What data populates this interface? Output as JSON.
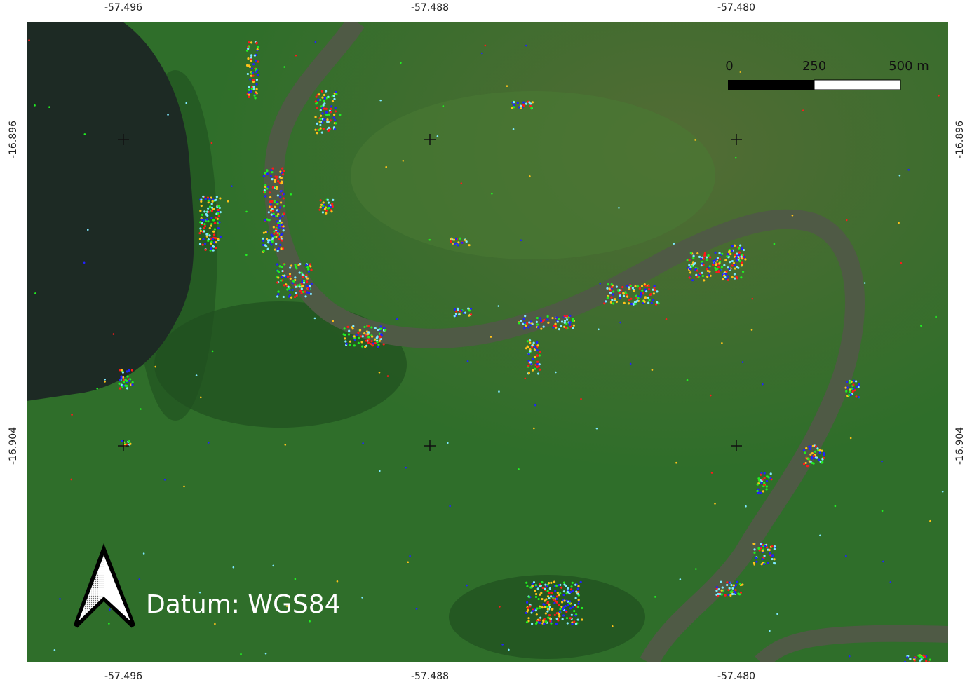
{
  "map": {
    "x_ticks_top": [
      "-57.496",
      "-57.488",
      "-57.480"
    ],
    "x_ticks_bottom": [
      "-57.496",
      "-57.488",
      "-57.480"
    ],
    "y_ticks_left": [
      "-16.896",
      "-16.904"
    ],
    "y_ticks_right": [
      "-16.896",
      "-16.904"
    ],
    "scale_bar": {
      "labels": [
        "0",
        "250",
        "500 m"
      ]
    },
    "north_arrow": "north-arrow-icon",
    "datum_label": "Datum: WGS84",
    "point_colors": [
      "#ff1a1a",
      "#ffc21a",
      "#22ee22",
      "#2222ff",
      "#7fe8ff"
    ],
    "colors": {
      "land": "#2f6e2a",
      "water": "#4f5a45",
      "lagoon": "#1d2a24"
    }
  }
}
